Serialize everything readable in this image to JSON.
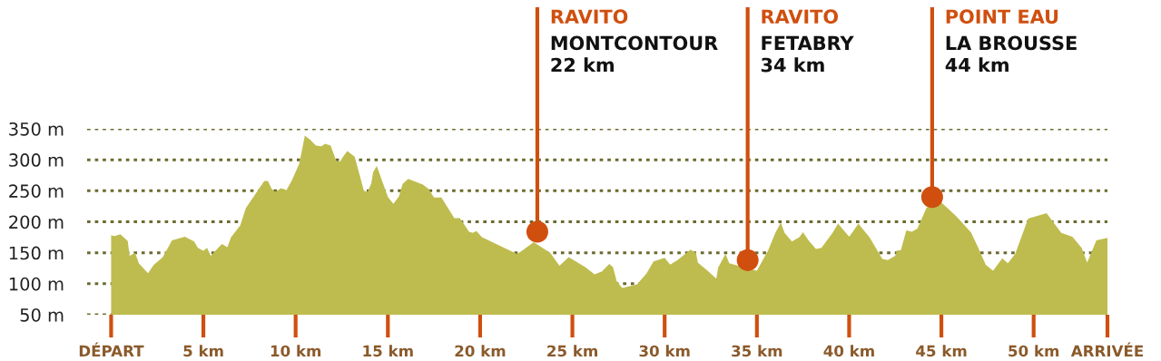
{
  "chart_data": {
    "type": "area",
    "color": "#bebc4e",
    "x": [
      0,
      0.2,
      0.5,
      0.9,
      1.0,
      1.3,
      1.5,
      2.0,
      2.3,
      2.8,
      3.3,
      4.0,
      4.5,
      4.7,
      5.0,
      5.2,
      5.4,
      6.0,
      6.3,
      6.5,
      7.0,
      7.3,
      7.6,
      8.3,
      8.5,
      8.7,
      8.9,
      9.2,
      9.5,
      9.8,
      10.2,
      10.5,
      10.8,
      11.1,
      11.4,
      11.6,
      11.9,
      12.2,
      12.4,
      12.6,
      12.8,
      13.2,
      13.7,
      13.9,
      14.1,
      14.2,
      14.4,
      15.0,
      15.3,
      15.6,
      15.8,
      16.1,
      16.9,
      17.2,
      17.5,
      17.9,
      18.6,
      18.9,
      19.4,
      19.6,
      19.8,
      20.1,
      22.0,
      22.3,
      22.9,
      23.8,
      24.3,
      24.8,
      25.7,
      26.2,
      26.6,
      27.0,
      27.2,
      27.4,
      27.7,
      28.5,
      29.0,
      29.4,
      30.0,
      30.3,
      30.7,
      31.4,
      31.7,
      31.8,
      32.4,
      32.8,
      32.9,
      33.3,
      33.5,
      35.0,
      35.6,
      36.0,
      36.3,
      36.5,
      36.9,
      37.3,
      37.5,
      37.8,
      38.2,
      38.5,
      39.1,
      39.4,
      40.0,
      40.2,
      40.5,
      41.1,
      41.8,
      42.1,
      42.5,
      42.6,
      42.8,
      43.1,
      43.4,
      43.7,
      44.2,
      45.0,
      45.8,
      46.6,
      47.0,
      47.4,
      47.8,
      48.3,
      48.6,
      49.0,
      49.7,
      50.7,
      51.5,
      52.1,
      52.6,
      52.9,
      53.4,
      54.0
    ],
    "values": [
      178,
      177,
      180,
      169,
      145,
      150,
      133,
      117,
      130,
      143,
      170,
      176,
      168,
      158,
      153,
      158,
      145,
      164,
      159,
      175,
      194,
      222,
      235,
      266,
      266,
      253,
      248,
      254,
      251,
      267,
      294,
      339,
      332,
      323,
      322,
      326,
      323,
      298,
      297,
      306,
      314,
      305,
      250,
      248,
      262,
      280,
      290,
      240,
      229,
      241,
      261,
      269,
      260,
      253,
      239,
      239,
      206,
      206,
      184,
      182,
      185,
      175,
      148,
      154,
      167,
      150,
      129,
      143,
      127,
      115,
      120,
      132,
      127,
      104,
      93,
      99,
      116,
      136,
      142,
      131,
      138,
      155,
      150,
      134,
      119,
      108,
      126,
      148,
      133,
      121,
      153,
      182,
      199,
      182,
      168,
      175,
      183,
      170,
      156,
      158,
      182,
      197,
      176,
      184,
      197,
      175,
      140,
      138,
      145,
      154,
      154,
      186,
      184,
      189,
      223,
      231,
      209,
      183,
      158,
      131,
      121,
      141,
      133,
      148,
      205,
      214,
      182,
      176,
      158,
      134,
      170,
      174
    ],
    "xlim": [
      -1.3,
      54
    ],
    "ylim": [
      50,
      350
    ],
    "xticks": [
      {
        "value": 0,
        "label": "DÉPART"
      },
      {
        "value": 5,
        "label": "5 km"
      },
      {
        "value": 10,
        "label": "10 km"
      },
      {
        "value": 15,
        "label": "15 km"
      },
      {
        "value": 20,
        "label": "20 km"
      },
      {
        "value": 25,
        "label": "25 km"
      },
      {
        "value": 30,
        "label": "30 km"
      },
      {
        "value": 35,
        "label": "35 km"
      },
      {
        "value": 40,
        "label": "40 km"
      },
      {
        "value": 45,
        "label": "45 km"
      },
      {
        "value": 50,
        "label": "50 km"
      },
      {
        "value": 54,
        "label": "ARRIVÉE"
      }
    ],
    "yticks": [
      {
        "value": 50,
        "label": "50 m"
      },
      {
        "value": 100,
        "label": "100 m"
      },
      {
        "value": 150,
        "label": "150 m"
      },
      {
        "value": 200,
        "label": "200 m"
      },
      {
        "value": 250,
        "label": "250 m"
      },
      {
        "value": 300,
        "label": "300 m"
      },
      {
        "value": 350,
        "label": "350 m"
      }
    ],
    "grid": "y",
    "annotations": [
      {
        "text": "RAVITO\nMONTCONTOUR\n22 km",
        "x": 23.1,
        "y": 184
      },
      {
        "text": "RAVITO\nFETABRY\n34 km",
        "x": 34.5,
        "y": 138
      },
      {
        "text": "POINT EAU\nLA BROUSSE\n44 km",
        "x": 44.5,
        "y": 240
      }
    ]
  }
}
